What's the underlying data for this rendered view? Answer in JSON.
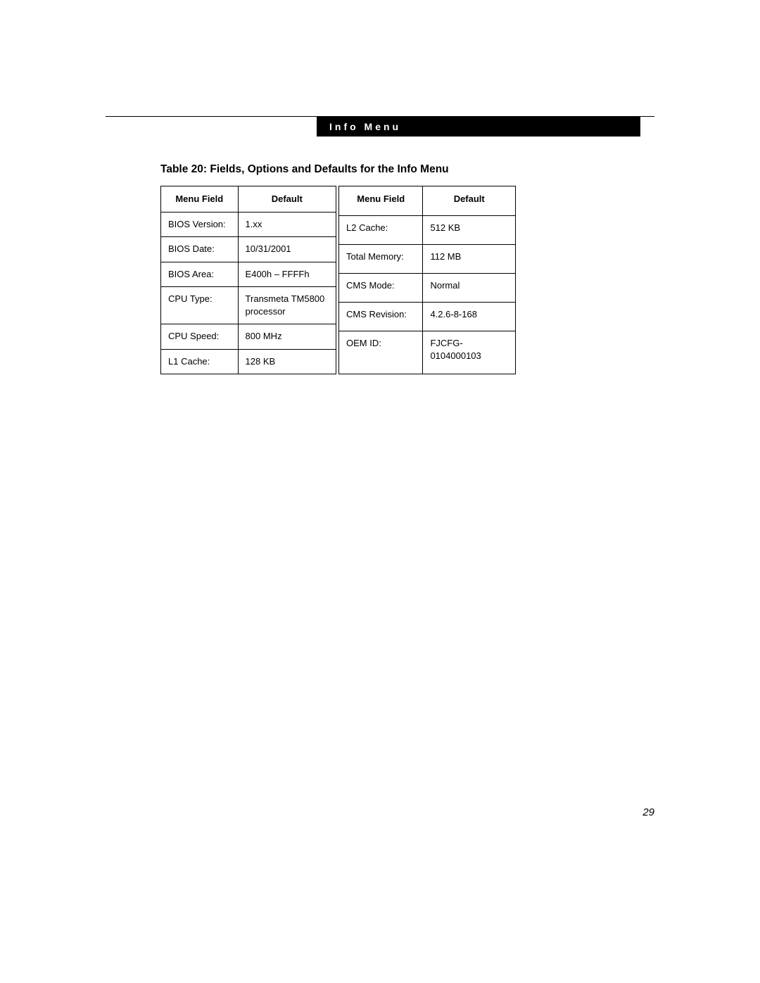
{
  "header": {
    "title": "Info Menu"
  },
  "caption": "Table 20: Fields, Options and Defaults for the Info Menu",
  "columns": {
    "menu_field": "Menu Field",
    "default": "Default"
  },
  "left_rows": [
    {
      "field": "BIOS Version:",
      "value": "1.xx"
    },
    {
      "field": "BIOS Date:",
      "value": "10/31/2001"
    },
    {
      "field": "BIOS Area:",
      "value": "E400h – FFFFh"
    },
    {
      "field": "CPU Type:",
      "value": "Transmeta TM5800 processor"
    },
    {
      "field": "CPU Speed:",
      "value": "800 MHz"
    },
    {
      "field": "L1 Cache:",
      "value": "128 KB"
    }
  ],
  "right_rows": [
    {
      "field": "L2 Cache:",
      "value": "512 KB"
    },
    {
      "field": "Total Memory:",
      "value": "112 MB"
    },
    {
      "field": "CMS Mode:",
      "value": "Normal"
    },
    {
      "field": "CMS Revision:",
      "value": "4.2.6-8-168"
    },
    {
      "field": "OEM ID:",
      "value": "FJCFG-0104000103"
    }
  ],
  "page_number": "29"
}
